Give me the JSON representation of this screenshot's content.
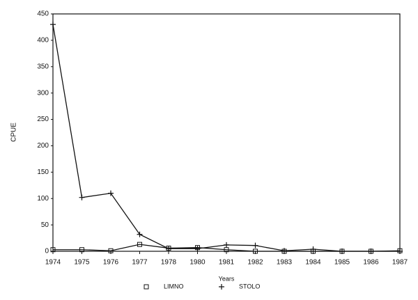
{
  "chart_data": {
    "type": "line",
    "x_label": "Years",
    "y_label": "CPUE",
    "categories": [
      "1974",
      "1975",
      "1976",
      "1977",
      "1978",
      "1980",
      "1981",
      "1982",
      "1983",
      "1984",
      "1985",
      "1986",
      "1987"
    ],
    "series": [
      {
        "name": "LIMNO",
        "color": "#111111",
        "marker": "square",
        "values": [
          3,
          3,
          1,
          13,
          6,
          7,
          3,
          0,
          0,
          0,
          0,
          0,
          1
        ]
      },
      {
        "name": "STOLO",
        "color": "#111111",
        "marker": "plus",
        "values": [
          430,
          102,
          110,
          32,
          5,
          5,
          12,
          11,
          1,
          4,
          0,
          0,
          0
        ]
      }
    ],
    "ylim": [
      0,
      450
    ],
    "yticks": [
      0,
      50,
      100,
      150,
      200,
      250,
      300,
      350,
      400,
      450
    ],
    "grid": false,
    "legend": "bottom"
  }
}
